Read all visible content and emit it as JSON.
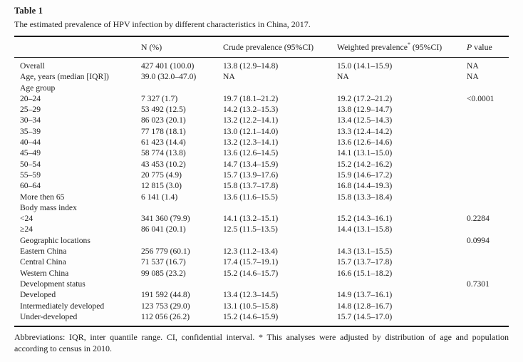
{
  "page": {
    "background": "#fdfdfd",
    "text_color": "#1d1d1d",
    "rule_color": "#1a1a1a"
  },
  "table": {
    "label": "Table 1",
    "caption": "The estimated prevalence of HPV infection by different characteristics in China, 2017.",
    "columns": {
      "characteristic": "",
      "n": "N (%)",
      "crude": "Crude prevalence (95%CI)",
      "weighted_main": "Weighted prevalence",
      "weighted_sup": "*",
      "weighted_tail": " (95%CI)",
      "pvalue_italic": "P",
      "pvalue_tail": " value"
    },
    "rows": [
      {
        "label": "Overall",
        "n": "427 401 (100.0)",
        "crude": "13.8 (12.9–14.8)",
        "weighted": "15.0 (14.1–15.9)",
        "p": "NA"
      },
      {
        "label": "Age, years (median [IQR])",
        "n": "39.0 (32.0–47.0)",
        "crude": "NA",
        "weighted": "NA",
        "p": "NA"
      },
      {
        "label": "Age group",
        "n": "",
        "crude": "",
        "weighted": "",
        "p": ""
      },
      {
        "label": "20–24",
        "n": "7 327 (1.7)",
        "crude": "19.7 (18.1–21.2)",
        "weighted": "19.2 (17.2–21.2)",
        "p": "<0.0001"
      },
      {
        "label": "25–29",
        "n": "53 492 (12.5)",
        "crude": "14.2 (13.2–15.3)",
        "weighted": "13.8 (12.9–14.7)",
        "p": ""
      },
      {
        "label": "30–34",
        "n": "86 023 (20.1)",
        "crude": "13.2 (12.2–14.1)",
        "weighted": "13.4 (12.5–14.3)",
        "p": ""
      },
      {
        "label": "35–39",
        "n": "77 178 (18.1)",
        "crude": "13.0 (12.1–14.0)",
        "weighted": "13.3 (12.4–14.2)",
        "p": ""
      },
      {
        "label": "40–44",
        "n": "61 423 (14.4)",
        "crude": "13.2 (12.3–14.1)",
        "weighted": "13.6 (12.6–14.6)",
        "p": ""
      },
      {
        "label": "45–49",
        "n": "58 774 (13.8)",
        "crude": "13.6 (12.6–14.5)",
        "weighted": "14.1 (13.1–15.0)",
        "p": ""
      },
      {
        "label": "50–54",
        "n": "43 453 (10.2)",
        "crude": "14.7 (13.4–15.9)",
        "weighted": "15.2 (14.2–16.2)",
        "p": ""
      },
      {
        "label": "55–59",
        "n": "20 775 (4.9)",
        "crude": "15.7 (13.9–17.6)",
        "weighted": "15.9 (14.6–17.2)",
        "p": ""
      },
      {
        "label": "60–64",
        "n": "12 815 (3.0)",
        "crude": "15.8 (13.7–17.8)",
        "weighted": "16.8 (14.4–19.3)",
        "p": ""
      },
      {
        "label": "More then 65",
        "n": "6 141 (1.4)",
        "crude": "13.6 (11.6–15.5)",
        "weighted": "15.8 (13.3–18.4)",
        "p": ""
      },
      {
        "label": "Body mass index",
        "n": "",
        "crude": "",
        "weighted": "",
        "p": ""
      },
      {
        "label": "<24",
        "n": "341 360 (79.9)",
        "crude": "14.1 (13.2–15.1)",
        "weighted": "15.2 (14.3–16.1)",
        "p": "0.2284"
      },
      {
        "label": "≥24",
        "n": "86 041 (20.1)",
        "crude": "12.5 (11.5–13.5)",
        "weighted": "14.4 (13.1–15.8)",
        "p": ""
      },
      {
        "label": "Geographic locations",
        "n": "",
        "crude": "",
        "weighted": "",
        "p": "0.0994"
      },
      {
        "label": "Eastern China",
        "n": "256 779 (60.1)",
        "crude": "12.3 (11.2–13.4)",
        "weighted": "14.3 (13.1–15.5)",
        "p": ""
      },
      {
        "label": "Central China",
        "n": "71 537 (16.7)",
        "crude": "17.4 (15.7–19.1)",
        "weighted": "15.7 (13.7–17.8)",
        "p": ""
      },
      {
        "label": "Western China",
        "n": "99 085 (23.2)",
        "crude": "15.2 (14.6–15.7)",
        "weighted": "16.6 (15.1–18.2)",
        "p": ""
      },
      {
        "label": "Development status",
        "n": "",
        "crude": "",
        "weighted": "",
        "p": "0.7301"
      },
      {
        "label": "Developed",
        "n": "191 592 (44.8)",
        "crude": "13.4 (12.3–14.5)",
        "weighted": "14.9 (13.7–16.1)",
        "p": ""
      },
      {
        "label": "Intermediately developed",
        "n": "123 753 (29.0)",
        "crude": "13.1 (10.5–15.8)",
        "weighted": "14.8 (12.8–16.7)",
        "p": ""
      },
      {
        "label": "Under-developed",
        "n": "112 056 (26.2)",
        "crude": "15.2 (14.6–15.9)",
        "weighted": "15.7 (14.5–17.0)",
        "p": ""
      }
    ],
    "footnote": "Abbreviations: IQR, inter quantile range. CI, confidential interval. * This analyses were adjusted by distribution of age and population according to census in 2010."
  }
}
